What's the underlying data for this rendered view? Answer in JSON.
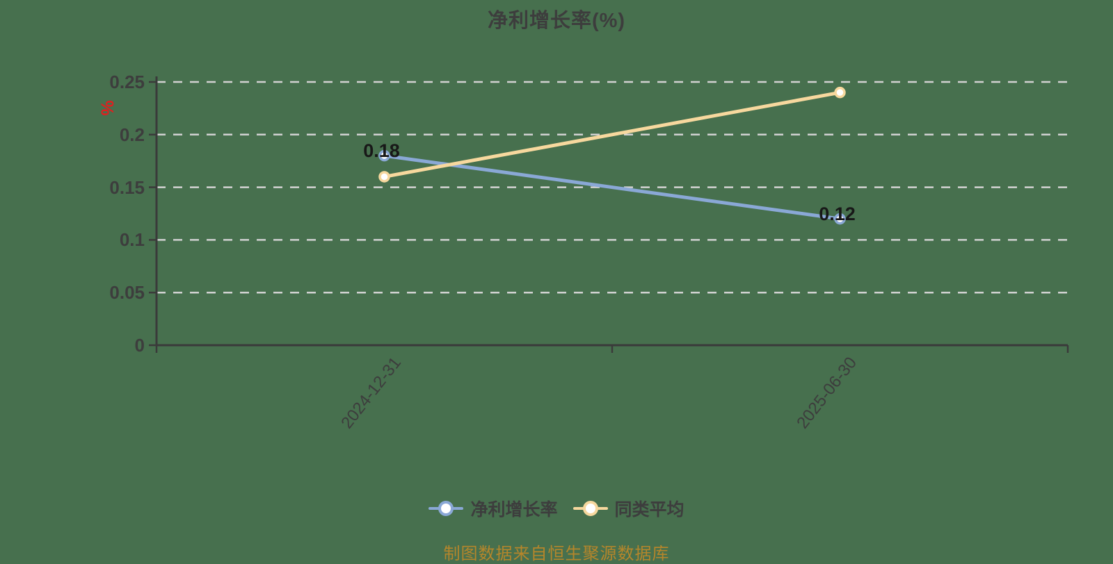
{
  "chart_data": {
    "type": "line",
    "title": "净利增长率(%)",
    "y_axis_unit": "%",
    "categories": [
      "2024-12-31",
      "2025-06-30"
    ],
    "series": [
      {
        "name": "净利增长率",
        "color": "#8aa8d6",
        "values": [
          0.18,
          0.12
        ],
        "point_labels": [
          "0.18",
          "0.12"
        ],
        "show_point_labels": true
      },
      {
        "name": "同类平均",
        "color": "#f7d89e",
        "values": [
          0.16,
          0.24
        ],
        "point_labels": [],
        "show_point_labels": false
      }
    ],
    "ylim": [
      0,
      0.25
    ],
    "y_ticks": [
      0,
      0.05,
      0.1,
      0.15,
      0.2,
      0.25
    ],
    "y_tick_labels": [
      "0",
      "0.05",
      "0.1",
      "0.15",
      "0.2",
      "0.25"
    ],
    "grid": "horizontal dashed",
    "legend_position": "bottom",
    "marker_style": "circle white-filled"
  },
  "footer": {
    "source_text": "制图数据来自恒生聚源数据库"
  },
  "colors": {
    "background": "#47704e",
    "axis": "#3a3a3a",
    "grid": "#d2d2d2",
    "text": "#3d3d3d",
    "data_label": "#181818",
    "y_unit": "#e01f1f",
    "footer_text": "#b5862b",
    "point_fill": "#ffffff"
  }
}
